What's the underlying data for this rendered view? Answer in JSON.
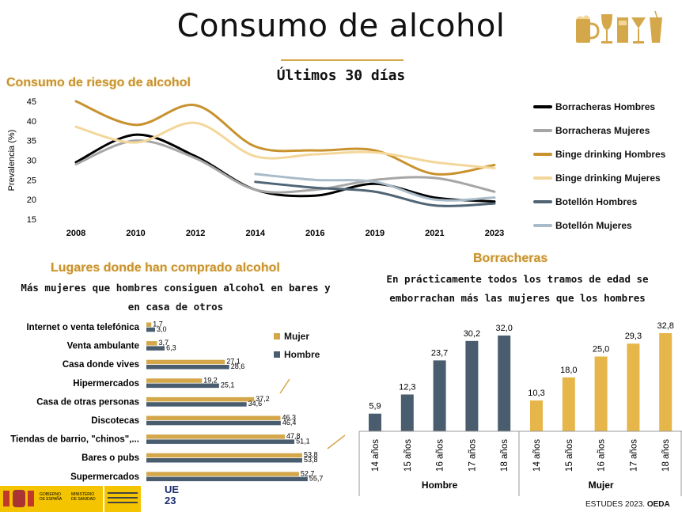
{
  "header": {
    "title": "Consumo de alcohol",
    "subtitle": "Últimos 30 días"
  },
  "colors": {
    "gold": "#d4a84a",
    "slate": "#4a5d6e",
    "black": "#000000",
    "grey": "#a6a6a6",
    "dark_gold": "#c8922e",
    "light_gold": "#f3d79a",
    "dark_slate": "#4f6475",
    "light_slate": "#a9bac8"
  },
  "footer": {
    "source_prefix": "ESTUDES 2023.",
    "source_org": "OEDA",
    "logo_gov_line1": "GOBIERNO",
    "logo_gov_line2": "DE ESPAÑA",
    "logo_min_line1": "MINISTERIO",
    "logo_min_line2": "DE SANIDAD",
    "logo_ue": "UE",
    "logo_23": "23"
  },
  "chart_data": [
    {
      "type": "line",
      "title": "Consumo de riesgo de alcohol",
      "ylabel": "Prevalencia (%)",
      "x": [
        "2008",
        "2010",
        "2012",
        "2014",
        "2016",
        "2019",
        "2021",
        "2023"
      ],
      "ylim": [
        15,
        45
      ],
      "yticks": [
        15,
        20,
        25,
        30,
        35,
        40,
        45
      ],
      "legend_position": "right",
      "series": [
        {
          "name": "Borracheras  Hombres",
          "color": "#000000",
          "values": [
            29.5,
            36.5,
            31.0,
            22.5,
            21.0,
            24.0,
            20.5,
            19.5
          ]
        },
        {
          "name": "Borracheras  Mujeres",
          "color": "#a6a6a6",
          "values": [
            29.0,
            35.0,
            30.5,
            22.5,
            22.5,
            25.0,
            25.5,
            22.0
          ]
        },
        {
          "name": "Binge drinking  Hombres",
          "color": "#c8922e",
          "values": [
            45.0,
            39.0,
            44.0,
            33.5,
            32.5,
            32.5,
            26.5,
            28.8
          ]
        },
        {
          "name": "Binge drinking  Mujeres",
          "color": "#f3d79a",
          "values": [
            38.5,
            34.5,
            39.5,
            31.0,
            31.5,
            32.0,
            29.5,
            28.0
          ]
        },
        {
          "name": "Botellón  Hombres",
          "color": "#4f6475",
          "values": [
            null,
            null,
            null,
            24.5,
            23.0,
            22.0,
            18.5,
            19.0
          ]
        },
        {
          "name": "Botellón  Mujeres",
          "color": "#a9bac8",
          "values": [
            null,
            null,
            null,
            26.5,
            25.0,
            24.5,
            20.0,
            20.5
          ]
        }
      ]
    },
    {
      "type": "bar",
      "orientation": "horizontal",
      "title": "Lugares donde han comprado alcohol",
      "subtitle": "Más mujeres que hombres consiguen alcohol en bares y en casa de otros",
      "categories": [
        "Internet o venta telefónica",
        "Venta ambulante",
        "Casa donde vives",
        "Hipermercados",
        "Casa de otras personas",
        "Discotecas",
        "Tiendas de barrio, \"chinos\",...",
        "Bares o pubs",
        "Supermercados"
      ],
      "xlim": [
        0,
        60
      ],
      "legend_position": "right",
      "series": [
        {
          "name": "Mujer",
          "color": "#d4a84a",
          "values": [
            1.7,
            3.7,
            27.1,
            19.2,
            37.2,
            46.3,
            47.8,
            53.8,
            52.7
          ],
          "labels": [
            "1,7",
            "3,7",
            "27,1",
            "19,2",
            "37,2",
            "46,3",
            "47,8",
            "53,8",
            "52,7"
          ]
        },
        {
          "name": "Hombre",
          "color": "#4a5d6e",
          "values": [
            3.0,
            6.3,
            28.6,
            25.1,
            34.6,
            46.4,
            51.1,
            53.8,
            55.7
          ],
          "labels": [
            "3,0",
            "6,3",
            "28,6",
            "25,1",
            "34,6",
            "46,4",
            "51,1",
            "53,8",
            "55,7"
          ]
        }
      ]
    },
    {
      "type": "bar",
      "title": "Borracheras",
      "subtitle": "En prácticamente todos los tramos de edad se emborrachan más las mujeres que los hombres",
      "ylim": [
        0,
        35
      ],
      "groups": [
        {
          "name": "Hombre",
          "color": "#4a5d6e",
          "categories": [
            "14 años",
            "15 años",
            "16 años",
            "17 años",
            "18 años"
          ],
          "values": [
            5.9,
            12.3,
            23.7,
            30.2,
            32.0
          ],
          "labels": [
            "5,9",
            "12,3",
            "23,7",
            "30,2",
            "32,0"
          ]
        },
        {
          "name": "Mujer",
          "color": "#e6b64a",
          "categories": [
            "14 años",
            "15 años",
            "16 años",
            "17 años",
            "18 años"
          ],
          "values": [
            10.3,
            18.0,
            25.0,
            29.3,
            32.8
          ],
          "labels": [
            "10,3",
            "18,0",
            "25,0",
            "29,3",
            "32,8"
          ]
        }
      ]
    }
  ]
}
